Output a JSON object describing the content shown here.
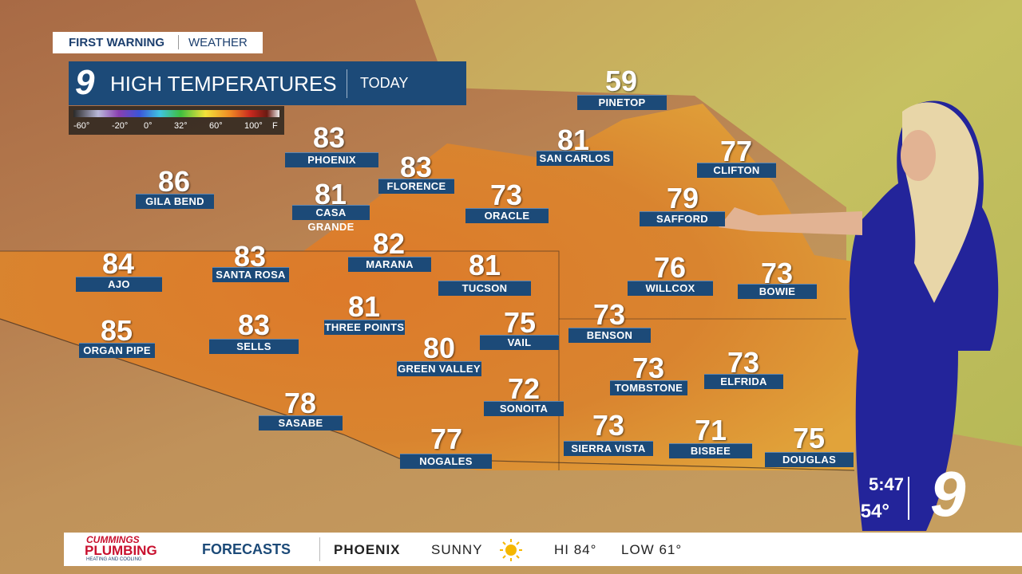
{
  "header": {
    "brand": "FIRST WARNING",
    "section": "WEATHER"
  },
  "title_box": {
    "logo": "9",
    "title": "HIGH TEMPERATURES",
    "period": "TODAY"
  },
  "legend": {
    "ticks": [
      "-60°",
      "-20°",
      "0°",
      "32°",
      "60°",
      "100°"
    ],
    "unit": "F"
  },
  "cities": [
    {
      "temp": 59,
      "name": "PINETOP"
    },
    {
      "temp": 83,
      "name": "PHOENIX"
    },
    {
      "temp": 81,
      "name": "SAN CARLOS"
    },
    {
      "temp": 77,
      "name": "CLIFTON"
    },
    {
      "temp": 86,
      "name": "GILA BEND"
    },
    {
      "temp": 83,
      "name": "FLORENCE"
    },
    {
      "temp": 81,
      "name": "CASA GRANDE"
    },
    {
      "temp": 73,
      "name": "ORACLE"
    },
    {
      "temp": 79,
      "name": "SAFFORD"
    },
    {
      "temp": 82,
      "name": "MARANA"
    },
    {
      "temp": 83,
      "name": "SANTA ROSA"
    },
    {
      "temp": 84,
      "name": "AJO"
    },
    {
      "temp": 81,
      "name": "TUCSON"
    },
    {
      "temp": 76,
      "name": "WILLCOX"
    },
    {
      "temp": 73,
      "name": "BOWIE"
    },
    {
      "temp": 81,
      "name": "THREE POINTS"
    },
    {
      "temp": 73,
      "name": "BENSON"
    },
    {
      "temp": 75,
      "name": "VAIL"
    },
    {
      "temp": 85,
      "name": "ORGAN PIPE"
    },
    {
      "temp": 83,
      "name": "SELLS"
    },
    {
      "temp": 80,
      "name": "GREEN VALLEY"
    },
    {
      "temp": 73,
      "name": "TOMBSTONE"
    },
    {
      "temp": 73,
      "name": "ELFRIDA"
    },
    {
      "temp": 72,
      "name": "SONOITA"
    },
    {
      "temp": 78,
      "name": "SASABE"
    },
    {
      "temp": 73,
      "name": "SIERRA VISTA"
    },
    {
      "temp": 71,
      "name": "BISBEE"
    },
    {
      "temp": 77,
      "name": "NOGALES"
    },
    {
      "temp": 75,
      "name": "DOUGLAS"
    }
  ],
  "clock": {
    "time": "5:47",
    "temp": "54°",
    "logo": "9"
  },
  "ticker": {
    "sponsor": "CUMMINGS",
    "sponsor2": "PLUMBING",
    "sponsor_tag": "HEATING AND COOLING",
    "segment": "FORECASTS",
    "city": "PHOENIX",
    "sky": "SUNNY",
    "hi": "HI 84°",
    "low": "LOW 61°"
  }
}
